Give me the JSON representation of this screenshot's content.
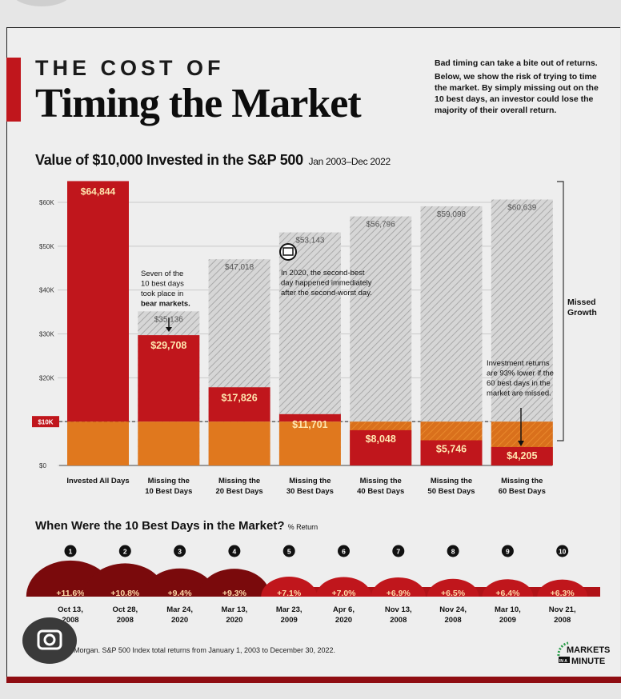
{
  "title": {
    "line1": "THE COST OF",
    "line2": "Timing the Market"
  },
  "intro": {
    "p1": "Bad timing can take a bite out of returns.",
    "p2": "Below, we show the risk of trying to time the market. By simply missing out on the 10 best days, an investor could lose the majority of their overall return."
  },
  "subtitle": {
    "main": "Value of $10,000 Invested in the S&P 500",
    "range": "Jan 2003–Dec 2022"
  },
  "colors": {
    "red": "#c0161c",
    "orange": "#e0781e",
    "dark_red": "#7a0a0c",
    "hatch": "#cfcfcf"
  },
  "chart_data": {
    "type": "bar",
    "title": "Value of $10,000 Invested in the S&P 500",
    "categories": [
      [
        "Invested All Days"
      ],
      [
        "Missing the",
        "10 Best Days"
      ],
      [
        "Missing the",
        "20 Best Days"
      ],
      [
        "Missing the",
        "30 Best Days"
      ],
      [
        "Missing the",
        "40 Best Days"
      ],
      [
        "Missing the",
        "50 Best Days"
      ],
      [
        "Missing the",
        "60 Best Days"
      ]
    ],
    "values": [
      64844,
      29708,
      17826,
      11701,
      8048,
      5746,
      4205
    ],
    "value_labels": [
      "$64,844",
      "$29,708",
      "$17,826",
      "$11,701",
      "$8,048",
      "$5,746",
      "$4,205"
    ],
    "potential_values": [
      64844,
      35136,
      47018,
      53143,
      56796,
      59098,
      60639
    ],
    "potential_labels": [
      "",
      "$35,136",
      "$47,018",
      "$53,143",
      "$56,796",
      "$59,098",
      "$60,639"
    ],
    "yticks": [
      0,
      10000,
      20000,
      30000,
      40000,
      50000,
      60000
    ],
    "ytick_labels": [
      "$0",
      "$10K",
      "$20K",
      "$30K",
      "$40K",
      "$50K",
      "$60K"
    ],
    "ylim": [
      0,
      67000
    ],
    "baseline": 10000,
    "annotations": {
      "bear": [
        "Seven of the",
        "10 best days",
        "took place in",
        "bear markets."
      ],
      "covid": [
        "In 2020, the second-best",
        "day happened immediately",
        "after the second-worst day."
      ],
      "lower": [
        "Investment returns",
        "are 93% lower if the",
        "60 best days in the",
        "market are missed."
      ],
      "missed_growth": [
        "Missed",
        "Growth"
      ]
    }
  },
  "best_days": {
    "title": "When Were the 10 Best Days in the Market?",
    "sub": "% Return",
    "items": [
      {
        "rank": "1",
        "pct": 11.6,
        "label": "+11.6%",
        "date1": "Oct 13,",
        "date2": "2008"
      },
      {
        "rank": "2",
        "pct": 10.8,
        "label": "+10.8%",
        "date1": "Oct 28,",
        "date2": "2008"
      },
      {
        "rank": "3",
        "pct": 9.4,
        "label": "+9.4%",
        "date1": "Mar 24,",
        "date2": "2020"
      },
      {
        "rank": "4",
        "pct": 9.3,
        "label": "+9.3%",
        "date1": "Mar 13,",
        "date2": "2020"
      },
      {
        "rank": "5",
        "pct": 7.1,
        "label": "+7.1%",
        "date1": "Mar 23,",
        "date2": "2009"
      },
      {
        "rank": "6",
        "pct": 7.0,
        "label": "+7.0%",
        "date1": "Apr 6,",
        "date2": "2020"
      },
      {
        "rank": "7",
        "pct": 6.9,
        "label": "+6.9%",
        "date1": "Nov 13,",
        "date2": "2008"
      },
      {
        "rank": "8",
        "pct": 6.5,
        "label": "+6.5%",
        "date1": "Nov 24,",
        "date2": "2008"
      },
      {
        "rank": "9",
        "pct": 6.4,
        "label": "+6.4%",
        "date1": "Mar 10,",
        "date2": "2009"
      },
      {
        "rank": "10",
        "pct": 6.3,
        "label": "+6.3%",
        "date1": "Nov 21,",
        "date2": "2008"
      }
    ]
  },
  "source": "Morgan. S&P 500 Index total returns from January 1, 2003 to December 30, 2022.",
  "logo": {
    "line1": "MARKETS",
    "in": "IN A",
    "line2": "MINUTE"
  }
}
